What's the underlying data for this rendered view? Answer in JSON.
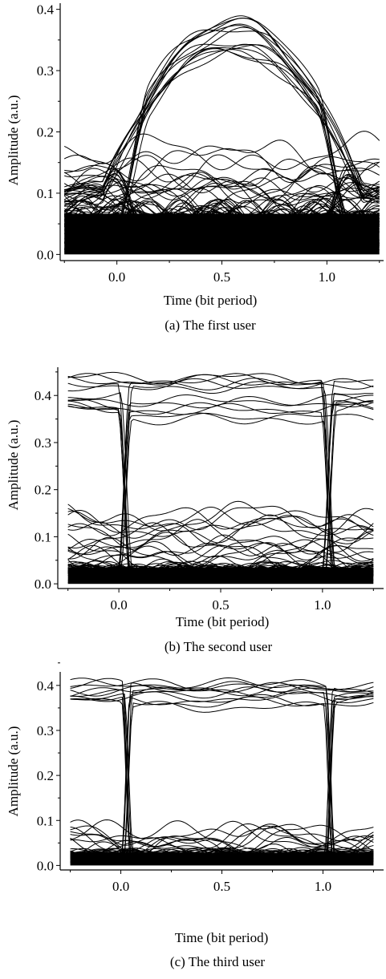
{
  "figures": [
    {
      "caption": "(a) The first user",
      "chart_data": {
        "type": "line",
        "subtype": "eye-diagram",
        "xlabel": "Time (bit period)",
        "ylabel": "Amplitude (a.u.)",
        "xlim": [
          -0.27,
          1.27
        ],
        "ylim": [
          -0.01,
          0.41
        ],
        "xticks": [
          0.0,
          0.5,
          1.0
        ],
        "xtick_labels": [
          "0.0",
          "0.5",
          "1.0"
        ],
        "yticks": [
          0.0,
          0.1,
          0.2,
          0.3,
          0.4
        ],
        "ytick_labels": [
          "0.0",
          "0.1",
          "0.2",
          "0.3",
          "0.4"
        ],
        "eye": {
          "x_start": -0.25,
          "x_end": 1.25,
          "crossings": [
            0.05,
            1.05
          ],
          "crossing_level": 0.19,
          "one_level_peak": [
            0.33,
            0.385
          ],
          "zero_noise_max": 0.095,
          "intermediate_levels": [
            0.1,
            0.16
          ]
        }
      }
    },
    {
      "caption": "(b) The second user",
      "chart_data": {
        "type": "line",
        "subtype": "eye-diagram",
        "xlabel": "Time (bit period)",
        "ylabel": "Amplitude (a.u.)",
        "xlim": [
          -0.3,
          1.3
        ],
        "ylim": [
          -0.01,
          0.46
        ],
        "xticks": [
          0.0,
          0.5,
          1.0
        ],
        "xtick_labels": [
          "0.0",
          "0.5",
          "1.0"
        ],
        "yticks": [
          0.0,
          0.1,
          0.2,
          0.3,
          0.4
        ],
        "ytick_labels": [
          "0.0",
          "0.1",
          "0.2",
          "0.3",
          "0.4"
        ],
        "eye": {
          "x_start": -0.25,
          "x_end": 1.25,
          "crossings": [
            0.03,
            1.03
          ],
          "crossing_level": 0.21,
          "one_level_peak": [
            0.35,
            0.44
          ],
          "zero_noise_max": 0.05,
          "intermediate_levels": [
            0.07,
            0.14
          ]
        }
      }
    },
    {
      "caption": "(c) The third user",
      "chart_data": {
        "type": "line",
        "subtype": "eye-diagram",
        "xlabel": "Time (bit period)",
        "ylabel": "Amplitude (a.u.)",
        "xlim": [
          -0.3,
          1.3
        ],
        "ylim": [
          -0.01,
          0.43
        ],
        "xticks": [
          0.0,
          0.5,
          1.0
        ],
        "xtick_labels": [
          "0.0",
          "0.5",
          "1.0"
        ],
        "yticks": [
          0.0,
          0.1,
          0.2,
          0.3,
          0.4
        ],
        "ytick_labels": [
          "0.0",
          "0.1",
          "0.2",
          "0.3",
          "0.4"
        ],
        "eye": {
          "x_start": -0.25,
          "x_end": 1.25,
          "crossings": [
            0.03,
            1.03
          ],
          "crossing_level": 0.2,
          "one_level_peak": [
            0.35,
            0.405
          ],
          "zero_noise_max": 0.04,
          "intermediate_levels": [
            0.06
          ]
        }
      }
    }
  ]
}
